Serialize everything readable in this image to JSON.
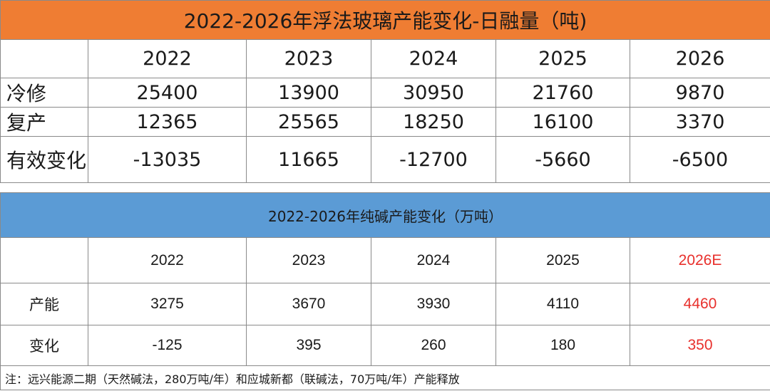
{
  "glass_table": {
    "title": "2022-2026年浮法玻璃产能变化-日融量（吨)",
    "years": [
      "2022",
      "2023",
      "2024",
      "2025",
      "2026"
    ],
    "rows": [
      {
        "label": "冷修",
        "values": [
          "25400",
          "13900",
          "30950",
          "21760",
          "9870"
        ]
      },
      {
        "label": "复产",
        "values": [
          "12365",
          "25565",
          "18250",
          "16100",
          "3370"
        ]
      },
      {
        "label": "有效变化",
        "values": [
          "-13035",
          "11665",
          "-12700",
          "-5660",
          "-6500"
        ]
      }
    ]
  },
  "soda_table": {
    "title": "2022-2026年纯碱产能变化（万吨）",
    "years": [
      "2022",
      "2023",
      "2024",
      "2025",
      "2026E"
    ],
    "rows": [
      {
        "label": "产能",
        "values": [
          "3275",
          "3670",
          "3930",
          "4110",
          "4460"
        ]
      },
      {
        "label": "变化",
        "values": [
          "-125",
          "395",
          "260",
          "180",
          "350"
        ]
      }
    ],
    "note": "注：远兴能源二期（天然碱法，280万吨/年）和应城新都（联碱法，70万吨/年）产能释放"
  },
  "colors": {
    "glass_title_bg": "#ef7d33",
    "soda_title_bg": "#5b9bd5",
    "estimate_text": "#e8302c"
  }
}
